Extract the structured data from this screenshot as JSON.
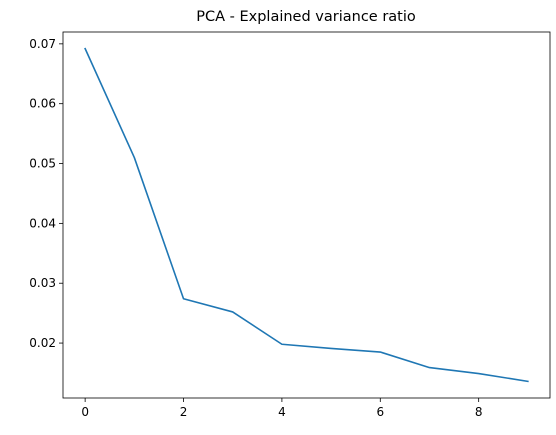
{
  "chart_data": {
    "type": "line",
    "title": "PCA - Explained variance ratio",
    "xlabel": "",
    "ylabel": "",
    "x": [
      0,
      1,
      2,
      3,
      4,
      5,
      6,
      7,
      8,
      9
    ],
    "series": [
      {
        "values": [
          0.0692,
          0.051,
          0.0274,
          0.0252,
          0.0198,
          0.0191,
          0.0185,
          0.0159,
          0.0149,
          0.0136
        ],
        "color": "#1f77b4"
      }
    ],
    "xlim": [
      -0.45,
      9.45
    ],
    "ylim": [
      0.01082,
      0.07198
    ],
    "xticks": [
      0,
      2,
      4,
      6,
      8
    ],
    "yticks": [
      0.02,
      0.03,
      0.04,
      0.05,
      0.06,
      0.07
    ],
    "xtick_labels": [
      "0",
      "2",
      "4",
      "6",
      "8"
    ],
    "ytick_labels": [
      "0.02",
      "0.03",
      "0.04",
      "0.05",
      "0.06",
      "0.07"
    ],
    "grid": false,
    "legend": "none"
  }
}
